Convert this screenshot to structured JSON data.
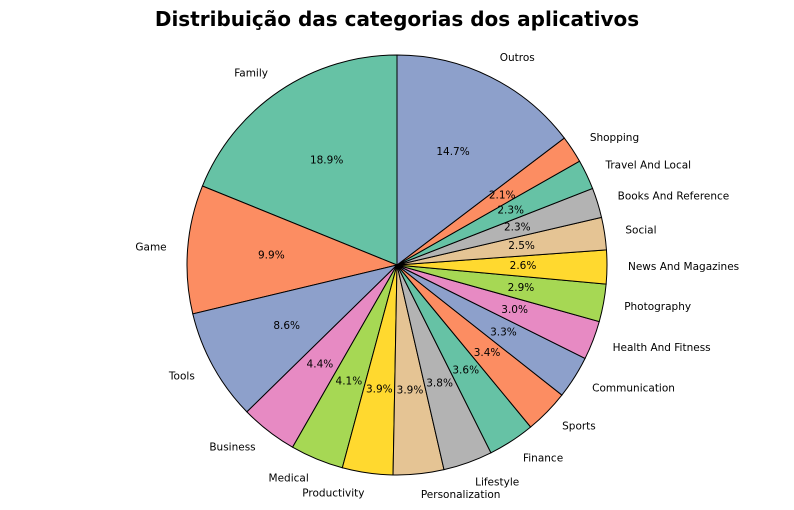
{
  "chart_data": {
    "type": "pie",
    "title": "Distribuição das categorias dos aplicativos",
    "start_angle_deg": 90,
    "direction": "counterclockwise",
    "slices": [
      {
        "label": "Family",
        "value": 18.9,
        "pct_text": "18.9%",
        "color": "#66c2a5"
      },
      {
        "label": "Game",
        "value": 9.9,
        "pct_text": "9.9%",
        "color": "#fc8d62"
      },
      {
        "label": "Tools",
        "value": 8.6,
        "pct_text": "8.6%",
        "color": "#8da0cb"
      },
      {
        "label": "Business",
        "value": 4.4,
        "pct_text": "4.4%",
        "color": "#e78ac3"
      },
      {
        "label": "Medical",
        "value": 4.1,
        "pct_text": "4.1%",
        "color": "#a6d854"
      },
      {
        "label": "Productivity",
        "value": 3.9,
        "pct_text": "3.9%",
        "color": "#ffd92f"
      },
      {
        "label": "Personalization",
        "value": 3.9,
        "pct_text": "3.9%",
        "color": "#e5c494"
      },
      {
        "label": "Lifestyle",
        "value": 3.8,
        "pct_text": "3.8%",
        "color": "#b3b3b3"
      },
      {
        "label": "Finance",
        "value": 3.6,
        "pct_text": "3.6%",
        "color": "#66c2a5"
      },
      {
        "label": "Sports",
        "value": 3.4,
        "pct_text": "3.4%",
        "color": "#fc8d62"
      },
      {
        "label": "Communication",
        "value": 3.3,
        "pct_text": "3.3%",
        "color": "#8da0cb"
      },
      {
        "label": "Health And Fitness",
        "value": 3.0,
        "pct_text": "3.0%",
        "color": "#e78ac3"
      },
      {
        "label": "Photography",
        "value": 2.9,
        "pct_text": "2.9%",
        "color": "#a6d854"
      },
      {
        "label": "News And Magazines",
        "value": 2.6,
        "pct_text": "2.6%",
        "color": "#ffd92f"
      },
      {
        "label": "Social",
        "value": 2.5,
        "pct_text": "2.5%",
        "color": "#e5c494"
      },
      {
        "label": "Books And Reference",
        "value": 2.3,
        "pct_text": "2.3%",
        "color": "#b3b3b3"
      },
      {
        "label": "Travel And Local",
        "value": 2.3,
        "pct_text": "2.3%",
        "color": "#66c2a5"
      },
      {
        "label": "Shopping",
        "value": 2.1,
        "pct_text": "2.1%",
        "color": "#fc8d62"
      },
      {
        "label": "Outros",
        "value": 14.7,
        "pct_text": "14.7%",
        "color": "#8da0cb"
      }
    ]
  }
}
